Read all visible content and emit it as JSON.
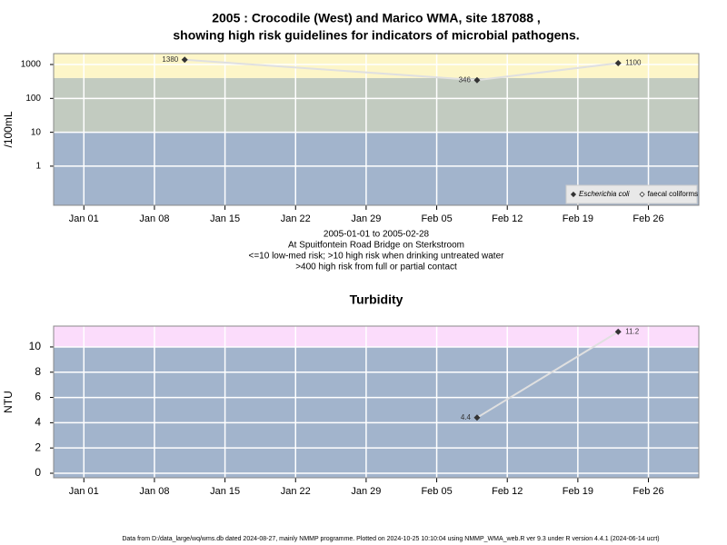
{
  "title": [
    "2005 : Crocodile (West) and Marico WMA, site 187088 ,",
    "showing high risk guidelines for indicators of microbial pathogens."
  ],
  "notes": [
    "2005-01-01 to 2005-02-28",
    "At Spuitfontein Road Bridge on Sterkstroom",
    "<=10 low-med risk; >10 high risk when drinking untreated water",
    ">400 high risk from full or partial contact"
  ],
  "footer": "Data from D:/data_large/wq/wms.db dated 2024-08-27, mainly NMMP programme. Plotted on 2024-10-25 10:10:04 using NMMP_WMA_web.R ver 9.3 under R version 4.4.1 (2024-06-14 ucrt)",
  "chart_data": [
    {
      "type": "line",
      "y_label": "/100mL",
      "log": true,
      "x": [
        "2005-01-11",
        "2005-02-09",
        "2005-02-23"
      ],
      "series": [
        {
          "name": "Escherichia coli",
          "color": "#333333",
          "values": [
            1380,
            346,
            1100
          ]
        },
        {
          "name": "faecal coliforms",
          "color": "#333333",
          "values": [
            null,
            null,
            null
          ]
        }
      ],
      "xlim": [
        "2004-12-29",
        "2005-03-03"
      ],
      "xticks": [
        {
          "value": "2005-01-01",
          "label": "Jan 01"
        },
        {
          "value": "2005-01-08",
          "label": "Jan 08"
        },
        {
          "value": "2005-01-15",
          "label": "Jan 15"
        },
        {
          "value": "2005-01-22",
          "label": "Jan 22"
        },
        {
          "value": "2005-01-29",
          "label": "Jan 29"
        },
        {
          "value": "2005-02-05",
          "label": "Feb 05"
        },
        {
          "value": "2005-02-12",
          "label": "Feb 12"
        },
        {
          "value": "2005-02-19",
          "label": "Feb 19"
        },
        {
          "value": "2005-02-26",
          "label": "Feb 26"
        }
      ],
      "ylim": [
        0.07,
        2100
      ],
      "yticks": [
        1,
        10,
        100,
        1000
      ],
      "bands": [
        {
          "from": 0.07,
          "to": 10,
          "color": "#a2b4cc"
        },
        {
          "from": 10,
          "to": 400,
          "color": "#c2cbc0"
        },
        {
          "from": 400,
          "to": 2100,
          "color": "#fdf6c8"
        }
      ],
      "grid": true,
      "legend": "bottom-right"
    },
    {
      "type": "line",
      "title": "Turbidity",
      "y_label": "NTU",
      "log": false,
      "x": [
        "2005-02-09",
        "2005-02-23"
      ],
      "series": [
        {
          "name": null,
          "color": "#333333",
          "values": [
            4.4,
            11.2
          ]
        }
      ],
      "xlim": [
        "2004-12-29",
        "2005-03-03"
      ],
      "xticks": [
        {
          "value": "2005-01-01",
          "label": "Jan 01"
        },
        {
          "value": "2005-01-08",
          "label": "Jan 08"
        },
        {
          "value": "2005-01-15",
          "label": "Jan 15"
        },
        {
          "value": "2005-01-22",
          "label": "Jan 22"
        },
        {
          "value": "2005-01-29",
          "label": "Jan 29"
        },
        {
          "value": "2005-02-05",
          "label": "Feb 05"
        },
        {
          "value": "2005-02-12",
          "label": "Feb 12"
        },
        {
          "value": "2005-02-19",
          "label": "Feb 19"
        },
        {
          "value": "2005-02-26",
          "label": "Feb 26"
        }
      ],
      "ylim": [
        -0.36,
        11.65
      ],
      "yticks": [
        0,
        2,
        4,
        6,
        8,
        10
      ],
      "bands": [
        {
          "from": -0.36,
          "to": 10,
          "color": "#a2b4cc"
        },
        {
          "from": 10,
          "to": 11.65,
          "color": "#fbdcfb"
        }
      ],
      "grid": true
    }
  ]
}
